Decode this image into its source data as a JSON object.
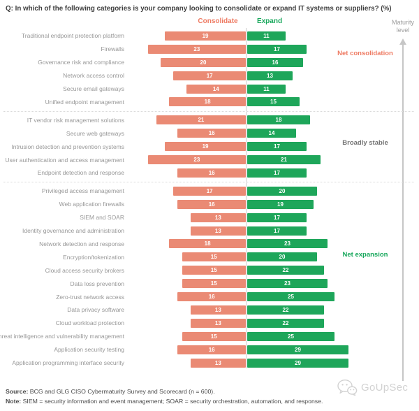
{
  "header": {
    "title": "Q: In which of the following categories is your company looking to consolidate or expand IT systems or suppliers? (%)"
  },
  "legend": {
    "consolidate": "Consolidate",
    "expand": "Expand",
    "consolidate_color": "#ee7b63",
    "expand_color": "#17a75b"
  },
  "axis": {
    "maturity_label_line1": "Maturity",
    "maturity_label_line2": "level"
  },
  "chart_data": {
    "type": "bar",
    "orientation": "diverging-horizontal",
    "title": "Q: In which of the following categories is your company looking to consolidate or expand IT systems or suppliers? (%)",
    "series_names": [
      "Consolidate",
      "Expand"
    ],
    "consolidate_bar_color": "#ea8a74",
    "expand_bar_color": "#1ea65a",
    "value_unit": "%",
    "groups": [
      {
        "label": "Net consolidation",
        "label_color": "#ee7b63",
        "rows": [
          {
            "category": "Traditional endpoint protection platform",
            "consolidate": 19,
            "expand": 11
          },
          {
            "category": "Firewalls",
            "consolidate": 23,
            "expand": 17
          },
          {
            "category": "Governance risk and compliance",
            "consolidate": 20,
            "expand": 16
          },
          {
            "category": "Network access control",
            "consolidate": 17,
            "expand": 13
          },
          {
            "category": "Secure email gateways",
            "consolidate": 14,
            "expand": 11
          },
          {
            "category": "Unified endpoint management",
            "consolidate": 18,
            "expand": 15
          }
        ]
      },
      {
        "label": "Broadly stable",
        "label_color": "#737373",
        "rows": [
          {
            "category": "IT vendor risk management solutions",
            "consolidate": 21,
            "expand": 18
          },
          {
            "category": "Secure web gateways",
            "consolidate": 16,
            "expand": 14
          },
          {
            "category": "Intrusion detection and prevention systems",
            "consolidate": 19,
            "expand": 17
          },
          {
            "category": "User authentication and access management",
            "consolidate": 23,
            "expand": 21
          },
          {
            "category": "Endpoint detection and response",
            "consolidate": 16,
            "expand": 17
          }
        ]
      },
      {
        "label": "Net expansion",
        "label_color": "#16a75b",
        "rows": [
          {
            "category": "Privileged access management",
            "consolidate": 17,
            "expand": 20
          },
          {
            "category": "Web application firewalls",
            "consolidate": 16,
            "expand": 19
          },
          {
            "category": "SIEM and SOAR",
            "consolidate": 13,
            "expand": 17
          },
          {
            "category": "Identity governance and administration",
            "consolidate": 13,
            "expand": 17
          },
          {
            "category": "Network detection and response",
            "consolidate": 18,
            "expand": 23
          },
          {
            "category": "Encryption/tokenization",
            "consolidate": 15,
            "expand": 20
          },
          {
            "category": "Cloud access security brokers",
            "consolidate": 15,
            "expand": 22
          },
          {
            "category": "Data loss prevention",
            "consolidate": 15,
            "expand": 23
          },
          {
            "category": "Zero-trust network access",
            "consolidate": 16,
            "expand": 25
          },
          {
            "category": "Data privacy software",
            "consolidate": 13,
            "expand": 22
          },
          {
            "category": "Cloud workload protection",
            "consolidate": 13,
            "expand": 22
          },
          {
            "category": "Threat intelligence and vulnerability management",
            "consolidate": 15,
            "expand": 25
          },
          {
            "category": "Application security testing",
            "consolidate": 16,
            "expand": 29
          },
          {
            "category": "Application programming interface security",
            "consolidate": 13,
            "expand": 29
          }
        ]
      }
    ]
  },
  "footer": {
    "source_prefix": "Source:",
    "source_text": " BCG and GLG CISO Cybermaturity Survey and Scorecard (n = 600).",
    "note_prefix": "Note:",
    "note_text": " SIEM = security information and event management; SOAR = security orchestration, automation, and response."
  },
  "watermark": {
    "text": "GoUpSec",
    "icon": "wechat-icon"
  }
}
